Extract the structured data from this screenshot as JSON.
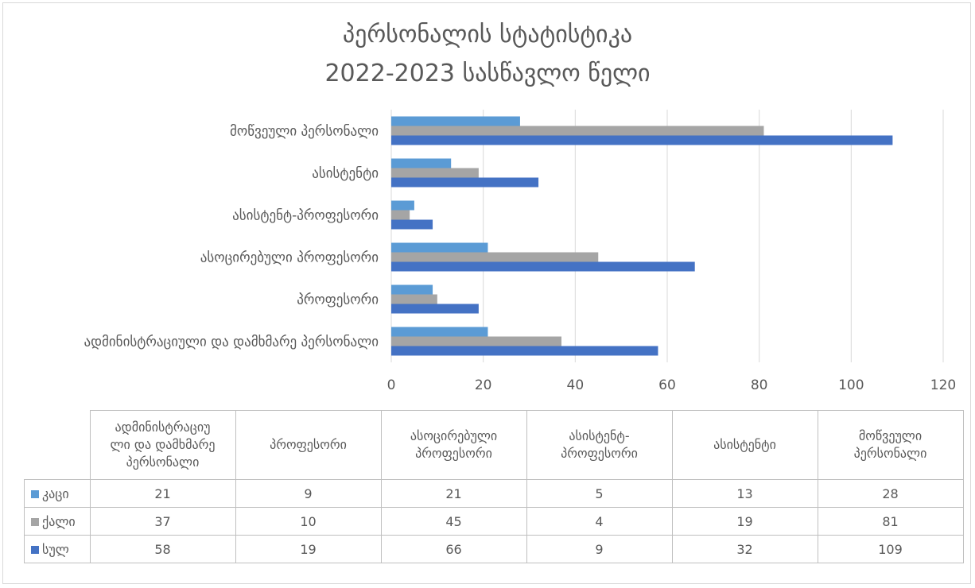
{
  "chart_data": {
    "type": "bar",
    "orientation": "horizontal",
    "title": [
      "პერსონალის სტატისტიკა",
      "2022-2023 სასწავლო წელი"
    ],
    "categories": [
      "ადმინისტრაციული და დამხმარე პერსონალი",
      "პროფესორი",
      "ასოცირებული პროფესორი",
      "ასისტენტ-პროფესორი",
      "ასისტენტი",
      "მოწვეული პერსონალი"
    ],
    "table_headers": [
      [
        "ადმინისტრაციუ",
        "ლი და დამხმარე",
        "პერსონალი"
      ],
      [
        "პროფესორი"
      ],
      [
        "ასოცირებული",
        "პროფესორი"
      ],
      [
        "ასისტენტ-",
        "პროფესორი"
      ],
      [
        "ასისტენტი"
      ],
      [
        "მოწვეული",
        "პერსონალი"
      ]
    ],
    "series": [
      {
        "name": "კაცი",
        "values": [
          21,
          9,
          21,
          5,
          13,
          28
        ],
        "color": "#5b9bd5"
      },
      {
        "name": "ქალი",
        "values": [
          37,
          10,
          45,
          4,
          19,
          81
        ],
        "color": "#a5a5a5"
      },
      {
        "name": "სულ",
        "values": [
          58,
          19,
          66,
          9,
          32,
          109
        ],
        "color": "#4472c4"
      }
    ],
    "xlim": [
      0,
      120
    ],
    "xticks": [
      "0",
      "20",
      "40",
      "60",
      "80",
      "100",
      "120"
    ],
    "grid": true,
    "legend": "data-table"
  }
}
